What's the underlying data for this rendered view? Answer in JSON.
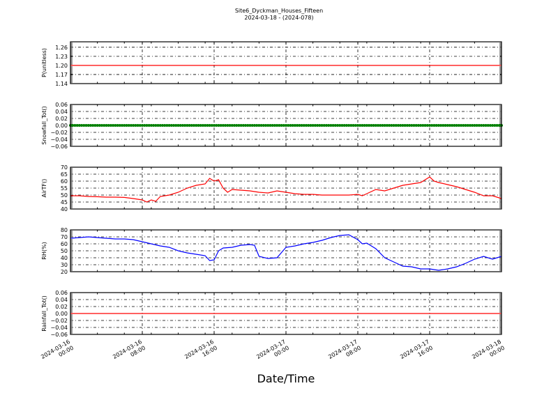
{
  "chart_data": {
    "title": "Site6_Dyckman_Houses_Fifteen",
    "subtitle": "2024-03-18 - (2024-078)",
    "xlabel": "Date/Time",
    "x_range": [
      "2024-03-16 00:00",
      "2024-03-18 00:00"
    ],
    "x_ticks": [
      [
        "2024-03-16",
        "00:00"
      ],
      [
        "2024-03-16",
        "08:00"
      ],
      [
        "2024-03-16",
        "16:00"
      ],
      [
        "2024-03-17",
        "00:00"
      ],
      [
        "2024-03-17",
        "08:00"
      ],
      [
        "2024-03-17",
        "16:00"
      ],
      [
        "2024-03-18",
        "00:00"
      ]
    ],
    "grid": true,
    "panels": [
      {
        "type": "line",
        "ylabel": "P(unitless)",
        "ylim": [
          1.14,
          1.278
        ],
        "yticks": [
          "1.14",
          "1.17",
          "1.20",
          "1.23",
          "1.26"
        ],
        "color": "#ff0000",
        "hours": [
          0,
          48
        ],
        "values": [
          1.2,
          1.2
        ]
      },
      {
        "type": "scatter",
        "ylabel": "Snowfall_Tot()",
        "ylim": [
          -0.06,
          0.06
        ],
        "yticks": [
          "-0.06",
          "-0.04",
          "-0.02",
          "0.00",
          "0.02",
          "0.04",
          "0.06"
        ],
        "color": "#008000",
        "hours": [
          0,
          48
        ],
        "values": [
          0,
          0
        ]
      },
      {
        "type": "line",
        "ylabel": "AirTF()",
        "ylim": [
          40,
          70
        ],
        "yticks": [
          "40",
          "45",
          "50",
          "55",
          "60",
          "65",
          "70"
        ],
        "color": "#ff0000",
        "hours": [
          0,
          1,
          2,
          3,
          4,
          5,
          6,
          7,
          8,
          8.5,
          9,
          9.5,
          10,
          11,
          12,
          13,
          14,
          15,
          15.5,
          16,
          16.5,
          17,
          17.5,
          18,
          19,
          20,
          21,
          22,
          23,
          24,
          25,
          26,
          27,
          28,
          29,
          30,
          31,
          32,
          32.5,
          33,
          34,
          35,
          36,
          37,
          38,
          39,
          40,
          40.5,
          41,
          42,
          43,
          44,
          45,
          46,
          47,
          48
        ],
        "values": [
          49.5,
          49.5,
          49,
          48.8,
          48.5,
          48.5,
          48.3,
          47.5,
          46.5,
          45,
          46.5,
          45.5,
          49,
          50,
          52,
          55,
          57,
          58,
          62,
          60,
          61,
          55,
          52,
          54,
          53.5,
          53,
          52,
          51.5,
          53,
          52,
          51,
          50.5,
          50.5,
          50,
          50,
          50,
          50,
          50.5,
          49.5,
          51,
          54,
          53,
          55,
          57,
          58,
          59,
          63,
          60,
          59,
          57.5,
          56,
          54,
          52,
          49.5,
          49.5,
          47.5
        ]
      },
      {
        "type": "line",
        "ylabel": "RH(%)",
        "ylim": [
          20,
          80
        ],
        "yticks": [
          "20",
          "30",
          "40",
          "50",
          "60",
          "70",
          "80"
        ],
        "color": "#0000ff",
        "hours": [
          0,
          1,
          2,
          3,
          4,
          5,
          6,
          7,
          8,
          9,
          10,
          11,
          12,
          13,
          14,
          15,
          15.5,
          16,
          16.5,
          17,
          18,
          19,
          20,
          20.5,
          21,
          22,
          23,
          24,
          25,
          26,
          27,
          28,
          29,
          30,
          31,
          32,
          32.5,
          33,
          34,
          35,
          36,
          37,
          38,
          39,
          40,
          41,
          42,
          43,
          44,
          45,
          46,
          47,
          48
        ],
        "values": [
          68,
          69,
          70,
          69,
          68,
          67,
          67,
          66,
          63,
          60,
          57,
          55,
          50,
          47,
          45,
          43,
          36,
          37,
          50,
          54,
          55,
          58,
          59,
          58,
          42,
          39,
          40,
          55,
          57,
          60,
          62,
          65,
          69,
          72,
          73,
          66,
          60,
          61,
          53,
          40,
          34,
          28,
          27,
          24,
          24,
          22,
          24,
          27,
          32,
          38,
          42,
          38,
          42
        ]
      },
      {
        "type": "line",
        "ylabel": "Rainfall_Tot()",
        "ylim": [
          -0.06,
          0.06
        ],
        "yticks": [
          "-0.06",
          "-0.04",
          "-0.02",
          "0.00",
          "0.02",
          "0.04",
          "0.06"
        ],
        "color": "#ff0000",
        "hours": [
          0,
          48
        ],
        "values": [
          0,
          0
        ]
      }
    ]
  }
}
